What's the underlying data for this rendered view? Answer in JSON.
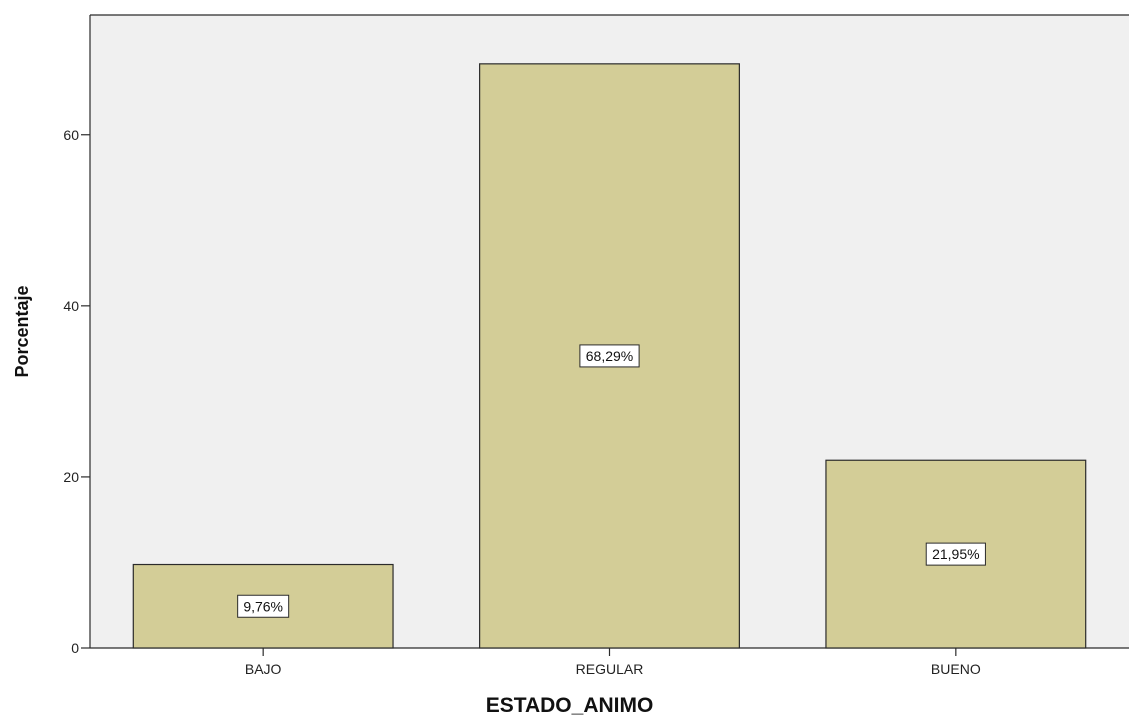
{
  "chart_data": {
    "type": "bar",
    "title": "",
    "xlabel": "ESTADO_ANIMO",
    "ylabel": "Porcentaje",
    "categories": [
      "BAJO",
      "REGULAR",
      "BUENO"
    ],
    "values": [
      9.76,
      68.29,
      21.95
    ],
    "data_labels": [
      "9,76%",
      "68,29%",
      "21,95%"
    ],
    "ylim": [
      0,
      74
    ],
    "yticks": [
      0,
      20,
      40,
      60
    ],
    "ytick_labels": [
      "0",
      "20",
      "40",
      "60"
    ],
    "grid": false,
    "legend": "none",
    "colors": {
      "bar_fill": "#d3cd97",
      "bar_stroke": "#2b2b2b",
      "plot_background": "#f0f0f0",
      "axis": "#2b2b2b"
    }
  }
}
